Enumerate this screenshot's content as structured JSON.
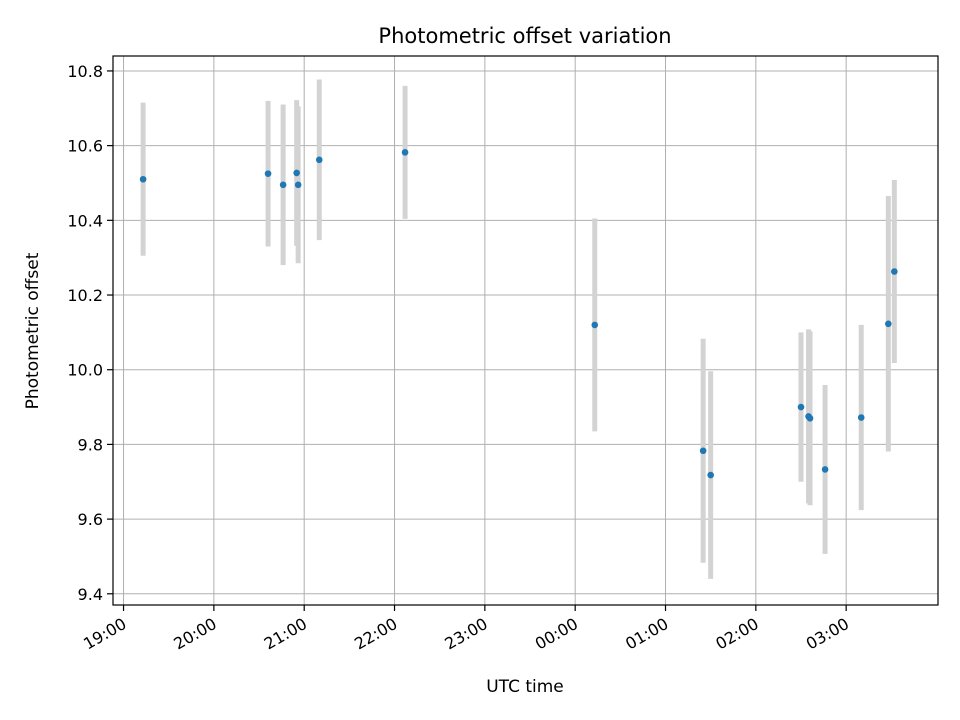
{
  "chart_data": {
    "type": "scatter",
    "title": "Photometric offset variation",
    "xlabel": "UTC time",
    "ylabel": "Photometric offset",
    "x_axis_kind": "time",
    "x_ticks": [
      "19:00",
      "20:00",
      "21:00",
      "22:00",
      "23:00",
      "00:00",
      "01:00",
      "02:00",
      "03:00"
    ],
    "y_ticks": [
      9.4,
      9.6,
      9.8,
      10.0,
      10.2,
      10.4,
      10.6,
      10.8
    ],
    "y_tick_labels": [
      "9.4",
      "9.6",
      "9.8",
      "10.0",
      "10.2",
      "10.4",
      "10.6",
      "10.8"
    ],
    "ylim": [
      9.37,
      10.84
    ],
    "xlim": [
      "18:53",
      "04:01"
    ],
    "grid": true,
    "marker_color": "#1f77b4",
    "errorbar_color": "#d3d3d3",
    "points": [
      {
        "time": "19:13",
        "value": 10.51,
        "error": 0.205
      },
      {
        "time": "20:36",
        "value": 10.525,
        "error": 0.195
      },
      {
        "time": "20:46",
        "value": 10.495,
        "error": 0.215
      },
      {
        "time": "20:55",
        "value": 10.527,
        "error": 0.195
      },
      {
        "time": "20:56",
        "value": 10.495,
        "error": 0.21
      },
      {
        "time": "21:10",
        "value": 10.562,
        "error": 0.215
      },
      {
        "time": "22:07",
        "value": 10.582,
        "error": 0.178
      },
      {
        "time": "00:13",
        "value": 10.12,
        "error": 0.285
      },
      {
        "time": "01:25",
        "value": 9.783,
        "error": 0.3
      },
      {
        "time": "01:30",
        "value": 9.718,
        "error": 0.278
      },
      {
        "time": "02:30",
        "value": 9.9,
        "error": 0.2
      },
      {
        "time": "02:35",
        "value": 9.875,
        "error": 0.233
      },
      {
        "time": "02:36",
        "value": 9.87,
        "error": 0.233
      },
      {
        "time": "02:46",
        "value": 9.733,
        "error": 0.226
      },
      {
        "time": "03:10",
        "value": 9.872,
        "error": 0.248
      },
      {
        "time": "03:28",
        "value": 10.123,
        "error": 0.342
      },
      {
        "time": "03:32",
        "value": 10.263,
        "error": 0.245
      }
    ]
  }
}
